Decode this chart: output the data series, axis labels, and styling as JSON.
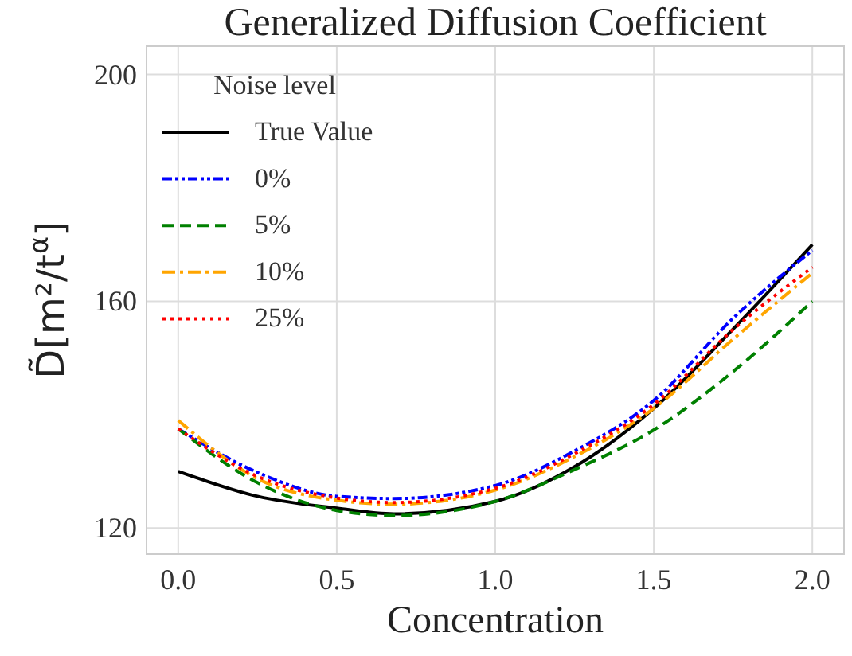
{
  "chart_data": {
    "type": "line",
    "title": "Generalized Diffusion Coefficient",
    "xlabel": "Concentration",
    "ylabel": "D̃[m²/t$^{α}$]",
    "legend_title": "Noise level",
    "legend": "top left",
    "grid": true,
    "xlim": [
      -0.1,
      2.1
    ],
    "xticks": [
      {
        "value": 0,
        "label": "0.0"
      },
      0.5,
      {
        "value": 1,
        "label": "1.0"
      },
      1.5,
      {
        "value": 2,
        "label": "2.0"
      }
    ],
    "ylim": [
      115.4,
      205
    ],
    "yticks": [
      120,
      160,
      200
    ],
    "x": [
      0,
      0.25,
      0.5,
      0.68,
      1,
      1.25,
      1.5,
      1.75,
      2
    ],
    "series": [
      {
        "name": "True Value",
        "color": "#000000",
        "line_style": "solid",
        "values": [
          130,
          125.6,
          123.5,
          122.5,
          124.7,
          130.8,
          141.1,
          155.1,
          170
        ]
      },
      {
        "name": "0%",
        "color": "#0000ff",
        "line_style": "dashdotdot",
        "values": [
          137.5,
          129.8,
          125.6,
          125.2,
          127.5,
          133.6,
          142.5,
          157,
          169
        ]
      },
      {
        "name": "5%",
        "color": "#008000",
        "line_style": "dashed",
        "values": [
          137.5,
          128,
          123.1,
          122.2,
          124.7,
          130.3,
          137.3,
          147.6,
          160
        ]
      },
      {
        "name": "10%",
        "color": "#ffa500",
        "line_style": "dashdot",
        "values": [
          139,
          128.7,
          124.9,
          124.2,
          126.7,
          132.6,
          141.1,
          153.3,
          165
        ]
      },
      {
        "name": "25%",
        "color": "#ff0000",
        "line_style": "dotted",
        "values": [
          137.5,
          129.1,
          125.3,
          124.5,
          127,
          133.1,
          141.8,
          155,
          166
        ]
      }
    ]
  }
}
